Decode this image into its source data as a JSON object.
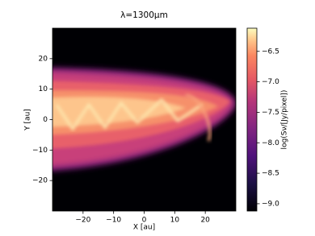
{
  "chart_data": {
    "type": "image",
    "title": "λ=1300μm",
    "xlabel": "X [au]",
    "ylabel": "Y [au]",
    "xlim": [
      -30,
      30
    ],
    "ylim": [
      -30,
      30
    ],
    "xticks": [
      {
        "value": -20,
        "label": "−20"
      },
      {
        "value": -10,
        "label": "−10"
      },
      0,
      10,
      20
    ],
    "yticks": [
      {
        "value": -20,
        "label": "−20"
      },
      {
        "value": -10,
        "label": "−10"
      },
      0,
      10,
      20
    ],
    "colorbar": {
      "label": "log(Sν/[Jy/pixel])",
      "lim": [
        -9.12,
        -6.12
      ],
      "ticks": [
        {
          "value": -6.5,
          "label": "−6.5"
        },
        {
          "value": -7.0,
          "label": "−7.0"
        },
        {
          "value": -7.5,
          "label": "−7.5"
        },
        {
          "value": -8.0,
          "label": "−8.0"
        },
        {
          "value": -8.5,
          "label": "−8.5"
        },
        {
          "value": -9.0,
          "label": "−9.0"
        }
      ]
    }
  }
}
